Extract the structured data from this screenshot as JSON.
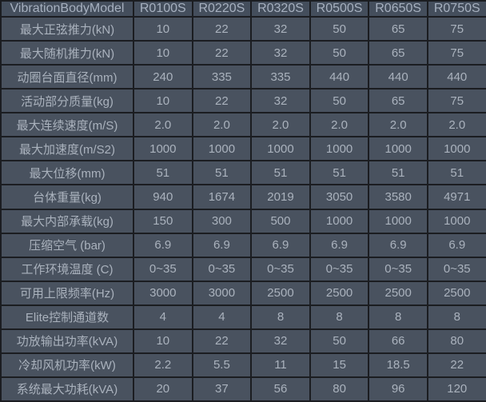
{
  "chart_data": {
    "type": "table",
    "columns": [
      "VibrationBodyModel",
      "R0100S",
      "R0220S",
      "R0320S",
      "R0500S",
      "R0650S",
      "R0750S"
    ],
    "rows": [
      {
        "label": "最大正弦推力(kN)",
        "values": [
          "10",
          "22",
          "32",
          "50",
          "65",
          "75"
        ]
      },
      {
        "label": "最大随机推力(kN)",
        "values": [
          "10",
          "22",
          "32",
          "50",
          "65",
          "75"
        ]
      },
      {
        "label": "动圈台面直径(mm)",
        "values": [
          "240",
          "335",
          "335",
          "440",
          "440",
          "440"
        ]
      },
      {
        "label": "活动部分质量(kg)",
        "values": [
          "10",
          "22",
          "32",
          "50",
          "65",
          "75"
        ]
      },
      {
        "label": "最大连续速度(m/S)",
        "values": [
          "2.0",
          "2.0",
          "2.0",
          "2.0",
          "2.0",
          "2.0"
        ]
      },
      {
        "label": "最大加速度(m/S2)",
        "values": [
          "1000",
          "1000",
          "1000",
          "1000",
          "1000",
          "1000"
        ]
      },
      {
        "label": "最大位移(mm)",
        "values": [
          "51",
          "51",
          "51",
          "51",
          "51",
          "51"
        ]
      },
      {
        "label": "台体重量(kg)",
        "values": [
          "940",
          "1674",
          "2019",
          "3050",
          "3580",
          "4971"
        ]
      },
      {
        "label": "最大内部承载(kg)",
        "values": [
          "150",
          "300",
          "500",
          "1000",
          "1000",
          "1000"
        ]
      },
      {
        "label": "压缩空气 (bar)",
        "values": [
          "6.9",
          "6.9",
          "6.9",
          "6.9",
          "6.9",
          "6.9"
        ]
      },
      {
        "label": "工作环境温度 (C)",
        "values": [
          "0~35",
          "0~35",
          "0~35",
          "0~35",
          "0~35",
          "0~35"
        ]
      },
      {
        "label": "可用上限频率(Hz)",
        "values": [
          "3000",
          "3000",
          "2500",
          "2500",
          "2500",
          "2500"
        ]
      },
      {
        "label": "Elite控制通道数",
        "values": [
          "4",
          "4",
          "8",
          "8",
          "8",
          "8"
        ]
      },
      {
        "label": "功放输出功率(kVA)",
        "values": [
          "10",
          "22",
          "32",
          "50",
          "66",
          "80"
        ]
      },
      {
        "label": "冷却风机功率(kW)",
        "values": [
          "2.2",
          "5.5",
          "11",
          "15",
          "18.5",
          "22"
        ]
      },
      {
        "label": "系统最大功耗(kVA)",
        "values": [
          "20",
          "37",
          "56",
          "80",
          "96",
          "120"
        ]
      }
    ],
    "layout_hints": {
      "grid": true,
      "first_column_is_row_labels": true
    }
  },
  "colors": {
    "cell_background": "#49525f",
    "header_background": "#444e5c",
    "grid_border": "#1b1d21",
    "text": "#aab2bd"
  }
}
